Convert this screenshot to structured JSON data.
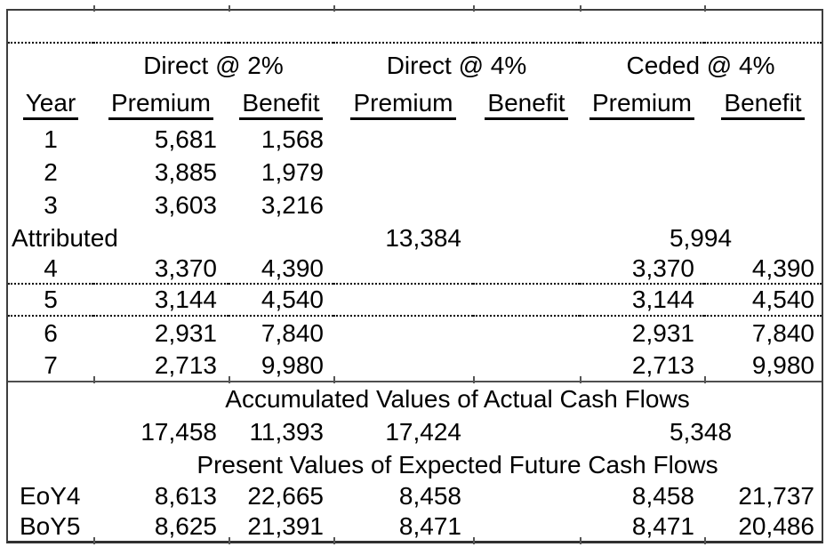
{
  "colors": {
    "text": "#000000",
    "outer_border": "#3d3d3d",
    "solid_rule": "#4f4f4f",
    "dotted_rule": "#000000"
  },
  "table": {
    "groups": [
      {
        "label": "Direct @ 2%"
      },
      {
        "label": "Direct @ 4%"
      },
      {
        "label": "Ceded @ 4%"
      }
    ],
    "columns": {
      "year": "Year",
      "premium": "Premium",
      "benefit": "Benefit"
    },
    "rows_early": [
      {
        "year": "1",
        "d2p": "5,681",
        "d2b": "1,568"
      },
      {
        "year": "2",
        "d2p": "3,885",
        "d2b": "1,979"
      },
      {
        "year": "3",
        "d2p": "3,603",
        "d2b": "3,216"
      }
    ],
    "attributed": {
      "label": "Attributed",
      "d4_premium": "13,384",
      "c4_value": "5,994"
    },
    "rows_late": [
      {
        "year": "4",
        "d2p": "3,370",
        "d2b": "4,390",
        "c4p": "3,370",
        "c4b": "4,390"
      },
      {
        "year": "5",
        "d2p": "3,144",
        "d2b": "4,540",
        "c4p": "3,144",
        "c4b": "4,540"
      },
      {
        "year": "6",
        "d2p": "2,931",
        "d2b": "7,840",
        "c4p": "2,931",
        "c4b": "7,840"
      },
      {
        "year": "7",
        "d2p": "2,713",
        "d2b": "9,980",
        "c4p": "2,713",
        "c4b": "9,980"
      }
    ],
    "accumulated": {
      "title": "Accumulated Values of Actual Cash Flows",
      "d2p": "17,458",
      "d2b": "11,393",
      "d4p": "17,424",
      "c4_value": "5,348"
    },
    "present": {
      "title": "Present Values of Expected Future Cash Flows",
      "rows": [
        {
          "label": "EoY4",
          "d2p": "8,613",
          "d2b": "22,665",
          "d4p": "8,458",
          "c4p": "8,458",
          "c4b": "21,737"
        },
        {
          "label": "BoY5",
          "d2p": "8,625",
          "d2b": "21,391",
          "d4p": "8,471",
          "c4p": "8,471",
          "c4b": "20,486"
        }
      ]
    }
  }
}
